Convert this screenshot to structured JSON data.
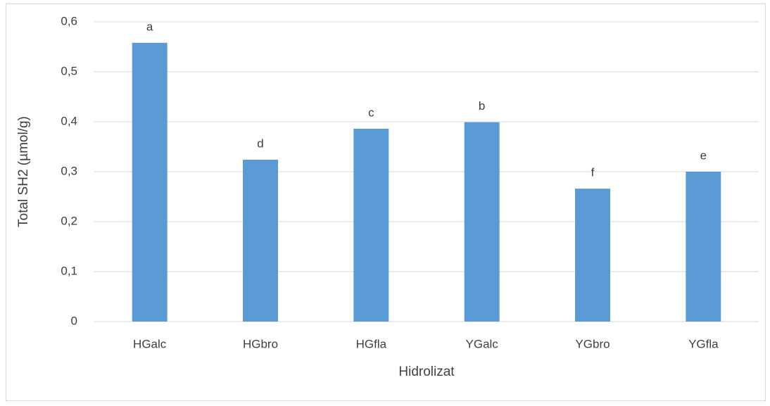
{
  "chart_data": {
    "type": "bar",
    "categories": [
      "HGalc",
      "HGbro",
      "HGfla",
      "YGalc",
      "YGbro",
      "YGfla"
    ],
    "values": [
      0.558,
      0.324,
      0.386,
      0.399,
      0.266,
      0.3
    ],
    "annotations": [
      "a",
      "d",
      "c",
      "b",
      "f",
      "e"
    ],
    "color": "#5b9bd5",
    "x_label": "Hidrolizat",
    "y_label": "Total SH2 (µmol/g)",
    "ylim": [
      0,
      0.6
    ],
    "yticks": [
      0,
      {
        "value": 0.1,
        "label": "0,1"
      },
      {
        "value": 0.2,
        "label": "0,2"
      },
      {
        "value": 0.3,
        "label": "0,3"
      },
      {
        "value": 0.4,
        "label": "0,4"
      },
      {
        "value": 0.5,
        "label": "0,5"
      },
      {
        "value": 0.6,
        "label": "0,6"
      }
    ],
    "grid": true
  }
}
